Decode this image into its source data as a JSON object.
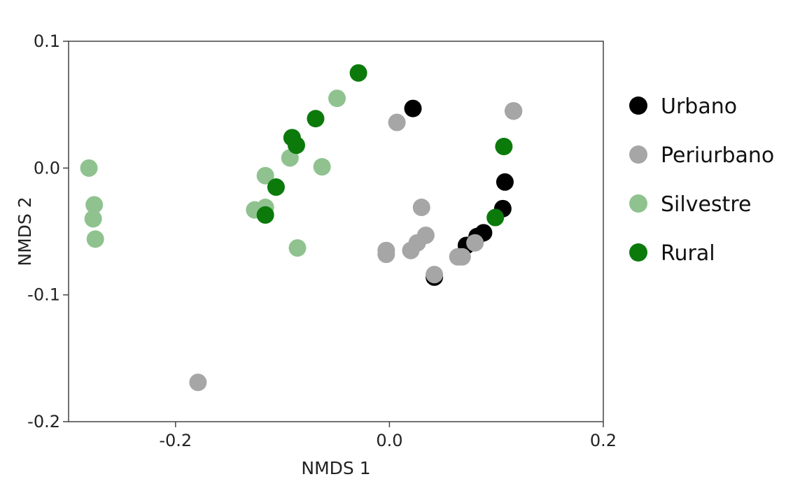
{
  "chart_data": {
    "type": "scatter",
    "title": "",
    "xlabel": "NMDS 1",
    "ylabel": "NMDS 2",
    "xlim": [
      -0.3,
      0.2
    ],
    "ylim": [
      -0.2,
      0.1
    ],
    "x_ticks": [
      -0.2,
      0.0,
      0.2
    ],
    "x_tick_labels": [
      "-0.2",
      "0.0",
      "0.2"
    ],
    "y_ticks": [
      -0.2,
      -0.1,
      0.0,
      0.1
    ],
    "y_tick_labels": [
      "-0.2",
      "-0.1",
      "0.0",
      "0.1"
    ],
    "grid": false,
    "legend_position": "right",
    "series": [
      {
        "name": "Urbano",
        "color": "#000000",
        "points": [
          [
            0.022,
            0.047
          ],
          [
            0.108,
            -0.011
          ],
          [
            0.106,
            -0.032
          ],
          [
            0.088,
            -0.051
          ],
          [
            0.082,
            -0.054
          ],
          [
            0.072,
            -0.061
          ],
          [
            0.042,
            -0.086
          ],
          [
            0.116,
            0.045
          ]
        ]
      },
      {
        "name": "Periurbano",
        "color": "#a6a6a6",
        "points": [
          [
            0.116,
            0.045
          ],
          [
            0.007,
            0.036
          ],
          [
            0.03,
            -0.031
          ],
          [
            0.034,
            -0.053
          ],
          [
            0.026,
            -0.059
          ],
          [
            0.02,
            -0.065
          ],
          [
            -0.003,
            -0.065
          ],
          [
            -0.003,
            -0.068
          ],
          [
            0.042,
            -0.084
          ],
          [
            0.064,
            -0.07
          ],
          [
            0.068,
            -0.07
          ],
          [
            0.08,
            -0.059
          ],
          [
            -0.179,
            -0.169
          ]
        ]
      },
      {
        "name": "Silvestre",
        "color": "#8fc28f",
        "points": [
          [
            -0.281,
            0.0
          ],
          [
            -0.276,
            -0.029
          ],
          [
            -0.277,
            -0.04
          ],
          [
            -0.275,
            -0.056
          ],
          [
            -0.049,
            0.055
          ],
          [
            -0.093,
            0.008
          ],
          [
            -0.063,
            0.001
          ],
          [
            -0.116,
            -0.006
          ],
          [
            -0.116,
            -0.031
          ],
          [
            -0.126,
            -0.033
          ],
          [
            -0.086,
            -0.063
          ]
        ]
      },
      {
        "name": "Rural",
        "color": "#0b7a0b",
        "points": [
          [
            -0.029,
            0.075
          ],
          [
            -0.069,
            0.039
          ],
          [
            -0.091,
            0.024
          ],
          [
            -0.087,
            0.018
          ],
          [
            -0.106,
            -0.015
          ],
          [
            -0.116,
            -0.037
          ],
          [
            0.107,
            0.017
          ],
          [
            0.099,
            -0.039
          ]
        ]
      }
    ]
  }
}
